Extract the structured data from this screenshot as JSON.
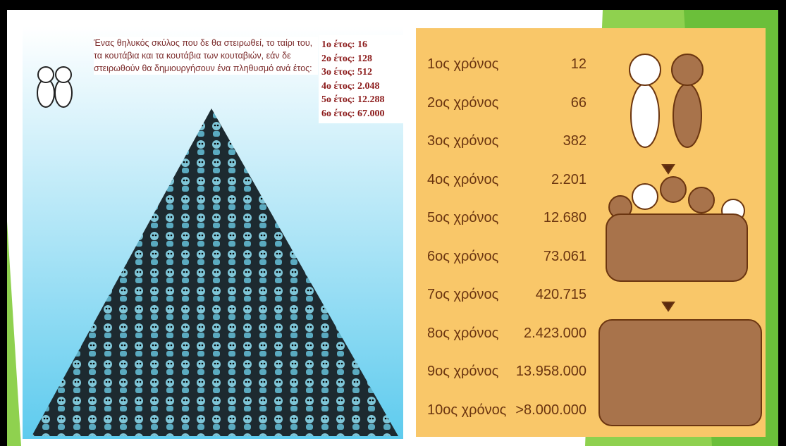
{
  "left": {
    "description": "Ένας θηλυκός σκύλος που δε θα στειρωθεί, το ταίρι του, τα κουτάβια και τα κουτάβια των κουταβιών, εάν δε στειρωθούν θα δημιουργήσουν ένα πληθυσμό ανά έτος:",
    "years": [
      "1ο έτος: 16",
      "2ο έτος: 128",
      "3ο έτος: 512",
      "4ο έτος: 2.048",
      "5ο έτος: 12.288",
      "6ο έτος: 67.000"
    ]
  },
  "right": {
    "rows": [
      [
        "1ος χρόνος",
        "12"
      ],
      [
        "2ος χρόνος",
        "66"
      ],
      [
        "3ος χρόνος",
        "382"
      ],
      [
        "4ος χρόνος",
        "2.201"
      ],
      [
        "5ος χρόνος",
        "12.680"
      ],
      [
        "6ος χρόνος",
        "73.061"
      ],
      [
        "7ος χρόνος",
        "420.715"
      ],
      [
        "8ος χρόνος",
        "2.423.000"
      ],
      [
        "9ος χρόνος",
        "13.958.000"
      ],
      [
        "10ος χρόνος",
        ">8.000.000"
      ]
    ]
  }
}
